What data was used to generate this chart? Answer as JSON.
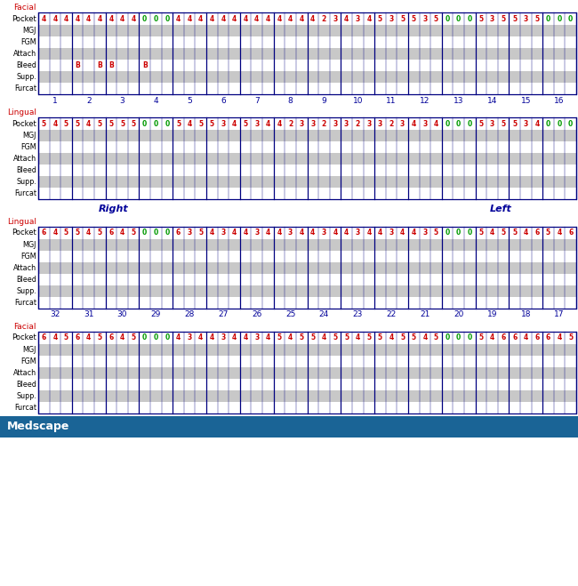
{
  "facial_upper_pocket": [
    "4",
    "4",
    "4",
    "4",
    "4",
    "4",
    "4",
    "4",
    "4",
    "0",
    "0",
    "0",
    "4",
    "4",
    "4",
    "4",
    "4",
    "4",
    "4",
    "4",
    "4",
    "4",
    "4",
    "4",
    "4",
    "2",
    "3",
    "4",
    "3",
    "4",
    "5",
    "3",
    "5",
    "5",
    "3",
    "5",
    "0",
    "0",
    "0",
    "5",
    "3",
    "5",
    "5",
    "3",
    "5",
    "0",
    "0",
    "0"
  ],
  "lingual_upper_pocket": [
    "5",
    "4",
    "5",
    "5",
    "4",
    "5",
    "5",
    "5",
    "5",
    "0",
    "0",
    "0",
    "5",
    "4",
    "5",
    "5",
    "3",
    "4",
    "5",
    "3",
    "4",
    "4",
    "2",
    "3",
    "3",
    "2",
    "3",
    "3",
    "2",
    "3",
    "3",
    "2",
    "3",
    "4",
    "3",
    "4",
    "0",
    "0",
    "0",
    "5",
    "3",
    "5",
    "5",
    "3",
    "4",
    "0",
    "0",
    "0"
  ],
  "lingual_lower_pocket": [
    "6",
    "4",
    "5",
    "5",
    "4",
    "5",
    "6",
    "4",
    "5",
    "0",
    "0",
    "0",
    "6",
    "3",
    "5",
    "4",
    "3",
    "4",
    "4",
    "3",
    "4",
    "4",
    "3",
    "4",
    "4",
    "3",
    "4",
    "4",
    "3",
    "4",
    "4",
    "3",
    "4",
    "4",
    "3",
    "5",
    "0",
    "0",
    "0",
    "5",
    "4",
    "5",
    "5",
    "4",
    "6",
    "5",
    "4",
    "6"
  ],
  "facial_lower_pocket": [
    "6",
    "4",
    "5",
    "6",
    "4",
    "5",
    "6",
    "4",
    "5",
    "0",
    "0",
    "0",
    "4",
    "3",
    "4",
    "4",
    "3",
    "4",
    "4",
    "3",
    "4",
    "5",
    "4",
    "5",
    "5",
    "4",
    "5",
    "5",
    "4",
    "5",
    "5",
    "4",
    "5",
    "5",
    "4",
    "5",
    "0",
    "0",
    "0",
    "5",
    "4",
    "6",
    "6",
    "4",
    "6",
    "6",
    "4",
    "5"
  ],
  "upper_tooth_numbers": [
    1,
    2,
    3,
    4,
    5,
    6,
    7,
    8,
    9,
    10,
    11,
    12,
    13,
    14,
    15,
    16
  ],
  "lower_tooth_numbers": [
    32,
    31,
    30,
    29,
    28,
    27,
    26,
    25,
    24,
    23,
    22,
    21,
    20,
    19,
    18,
    17
  ],
  "facial_upper_bleed": [
    3,
    5,
    6,
    9
  ],
  "row_labels": [
    "MGJ",
    "FGM",
    "Attach",
    "Bleed",
    "Supp.",
    "Furcat"
  ],
  "section_labels": [
    "Facial",
    "Lingual",
    "Lingual",
    "Facial"
  ],
  "red_color": "#cc0000",
  "green_color": "#009900",
  "navy_color": "#000080",
  "label_red": "#cc0000",
  "tooth_color": "#000099",
  "bg_gray": "#c8c8c8",
  "bg_white": "#ffffff",
  "footer_bg": "#1a6496",
  "footer_text": "#ffffff",
  "footer_label": "Medscape",
  "right_label": "Right",
  "left_label": "Left"
}
